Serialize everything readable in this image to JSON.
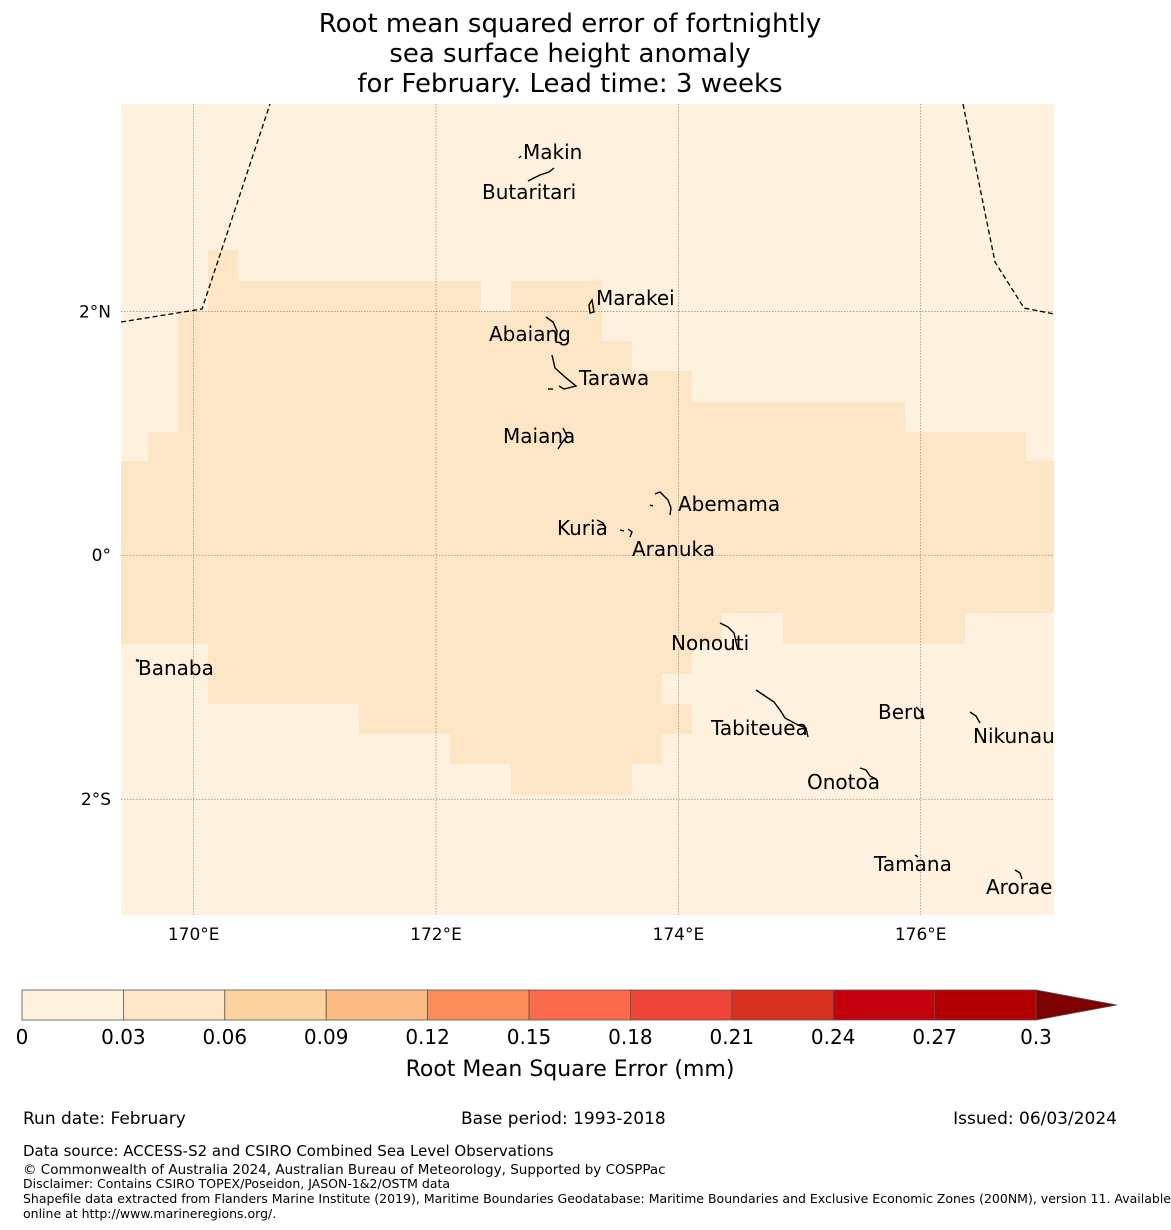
{
  "title": {
    "line1": "Root mean squared error of fortnightly",
    "line2": "sea surface height anomaly",
    "line3": "for February. Lead time: 3 weeks"
  },
  "map": {
    "lon_range": [
      169.4,
      177.1
    ],
    "lat_range": [
      -2.95,
      3.7
    ],
    "lon_ticks": [
      {
        "value": 170,
        "label": "170°E"
      },
      {
        "value": 172,
        "label": "172°E"
      },
      {
        "value": 174,
        "label": "174°E"
      },
      {
        "value": 176,
        "label": "176°E"
      }
    ],
    "lat_ticks": [
      {
        "value": 2,
        "label": "2°N"
      },
      {
        "value": 0,
        "label": "0°"
      },
      {
        "value": -2,
        "label": "2°S"
      }
    ],
    "background_color": "#fef1de",
    "field_color": "#fde6c6",
    "places": [
      {
        "name": "Makin",
        "lon": 173.0,
        "lat": 3.3
      },
      {
        "name": "Butaritari",
        "lon": 172.8,
        "lat": 3.05
      },
      {
        "name": "Marakei",
        "lon": 173.3,
        "lat": 2.0
      },
      {
        "name": "Abaiang",
        "lon": 173.0,
        "lat": 1.85
      },
      {
        "name": "Tarawa",
        "lon": 173.1,
        "lat": 1.4
      },
      {
        "name": "Maiana",
        "lon": 173.0,
        "lat": 0.92
      },
      {
        "name": "Abemama",
        "lon": 173.9,
        "lat": 0.4
      },
      {
        "name": "Kuria",
        "lon": 173.4,
        "lat": 0.22
      },
      {
        "name": "Aranuka",
        "lon": 173.6,
        "lat": 0.15
      },
      {
        "name": "Nonouti",
        "lon": 174.4,
        "lat": -0.65
      },
      {
        "name": "Banaba",
        "lon": 169.5,
        "lat": -0.85
      },
      {
        "name": "Beru",
        "lon": 176.0,
        "lat": -1.35
      },
      {
        "name": "Tabiteuea",
        "lon": 174.9,
        "lat": -1.4
      },
      {
        "name": "Nikunau",
        "lon": 176.45,
        "lat": -1.35
      },
      {
        "name": "Onotoa",
        "lon": 175.55,
        "lat": -1.8
      },
      {
        "name": "Tamana",
        "lon": 175.95,
        "lat": -2.5
      },
      {
        "name": "Arorae",
        "lon": 176.8,
        "lat": -2.65
      }
    ]
  },
  "colorbar": {
    "boundaries": [
      "0",
      "0.03",
      "0.06",
      "0.09",
      "0.12",
      "0.15",
      "0.18",
      "0.21",
      "0.24",
      "0.27",
      "0.3"
    ],
    "colors": [
      "#fef1de",
      "#fde6c6",
      "#fdd49e",
      "#fdbb84",
      "#fc8d59",
      "#fb6a4a",
      "#ef4538",
      "#d7301f",
      "#c4000d",
      "#b30000"
    ],
    "extend_color": "#7f0000",
    "label": "Root Mean Square Error (mm)"
  },
  "footer": {
    "run_date": "Run date: February",
    "base_period": "Base period: 1993-2018",
    "issued": "Issued: 06/03/2024",
    "data_source": "Data source: ACCESS-S2 and CSIRO Combined Sea Level Observations",
    "copyright": "© Commonwealth of Australia 2024, Australian Bureau of Meteorology, Supported by COSPPac",
    "disclaimer": "Disclaimer: Contains CSIRO TOPEX/Poseidon, JASON-1&2/OSTM data",
    "shapefile_1": "Shapefile data extracted from Flanders Marine Institute (2019), Maritime Boundaries Geodatabase: Maritime Boundaries and Exclusive Economic Zones (200NM), version 11. Available",
    "shapefile_2": "online at http://www.marineregions.org/."
  }
}
